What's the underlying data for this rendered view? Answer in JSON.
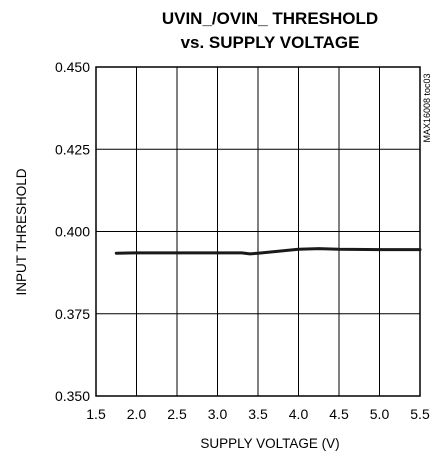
{
  "chart_data": {
    "type": "line",
    "title_line1": "UVIN_/OVIN_ THRESHOLD",
    "title_line2": "vs. SUPPLY VOLTAGE",
    "xlabel": "SUPPLY VOLTAGE (V)",
    "ylabel": "INPUT THRESHOLD",
    "note": "MAX16008 toc03",
    "xlim": [
      1.5,
      5.5
    ],
    "ylim": [
      0.35,
      0.45
    ],
    "x_ticks": [
      "1.5",
      "2.0",
      "2.5",
      "3.0",
      "3.5",
      "4.0",
      "4.5",
      "5.0",
      "5.5"
    ],
    "y_ticks": [
      "0.450",
      "0.425",
      "0.400",
      "0.375",
      "0.350"
    ],
    "grid": true,
    "series": [
      {
        "x": [
          1.75,
          2.0,
          2.5,
          3.0,
          3.3,
          3.4,
          3.5,
          3.75,
          4.0,
          4.25,
          4.5,
          5.0,
          5.5
        ],
        "y": [
          0.3934,
          0.3935,
          0.3935,
          0.3935,
          0.3935,
          0.3932,
          0.3934,
          0.394,
          0.3946,
          0.3948,
          0.3946,
          0.3945,
          0.3945
        ]
      }
    ],
    "colors": {
      "line": "#1a1a1a",
      "grid": "#000000",
      "axis": "#000000"
    }
  }
}
